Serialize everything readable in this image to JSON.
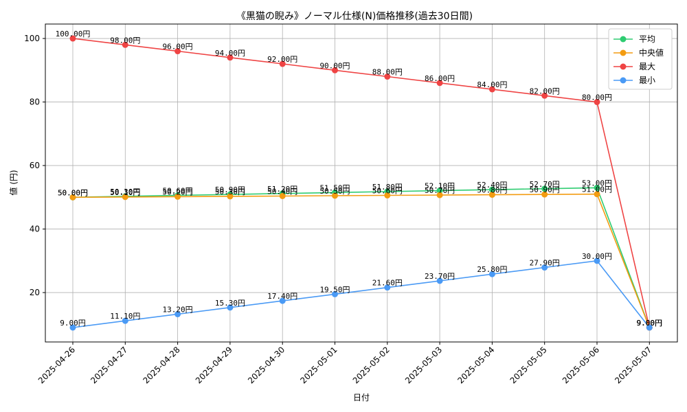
{
  "chart_data": {
    "type": "line",
    "title": "《黒猫の睨み》ノーマル仕様(N)価格推移(過去30日間)",
    "xlabel": "日付",
    "ylabel": "値 (円)",
    "ylim": [
      4.45,
      104.55
    ],
    "yticks": [
      20,
      40,
      60,
      80,
      100
    ],
    "grid": true,
    "legend_position": "top-right",
    "value_suffix": "円",
    "categories": [
      "2025-04-26",
      "2025-04-27",
      "2025-04-28",
      "2025-04-29",
      "2025-04-30",
      "2025-05-01",
      "2025-05-02",
      "2025-05-03",
      "2025-05-04",
      "2025-05-05",
      "2025-05-06",
      "2025-05-07"
    ],
    "series": [
      {
        "name": "平均",
        "color": "#2ecc71",
        "values": [
          50.0,
          50.3,
          50.6,
          50.9,
          51.2,
          51.5,
          51.8,
          52.1,
          52.4,
          52.7,
          53.0,
          9.0
        ]
      },
      {
        "name": "中央値",
        "color": "#f39c12",
        "values": [
          50.0,
          50.1,
          50.2,
          50.3,
          50.4,
          50.5,
          50.6,
          50.7,
          50.8,
          50.9,
          51.0,
          9.0
        ]
      },
      {
        "name": "最大",
        "color": "#ef4444",
        "values": [
          100.0,
          98.0,
          96.0,
          94.0,
          92.0,
          90.0,
          88.0,
          86.0,
          84.0,
          82.0,
          80.0,
          9.0
        ]
      },
      {
        "name": "最小",
        "color": "#4a9af5",
        "values": [
          9.0,
          11.1,
          13.2,
          15.3,
          17.4,
          19.5,
          21.6,
          23.7,
          25.8,
          27.9,
          30.0,
          9.0
        ]
      }
    ]
  }
}
